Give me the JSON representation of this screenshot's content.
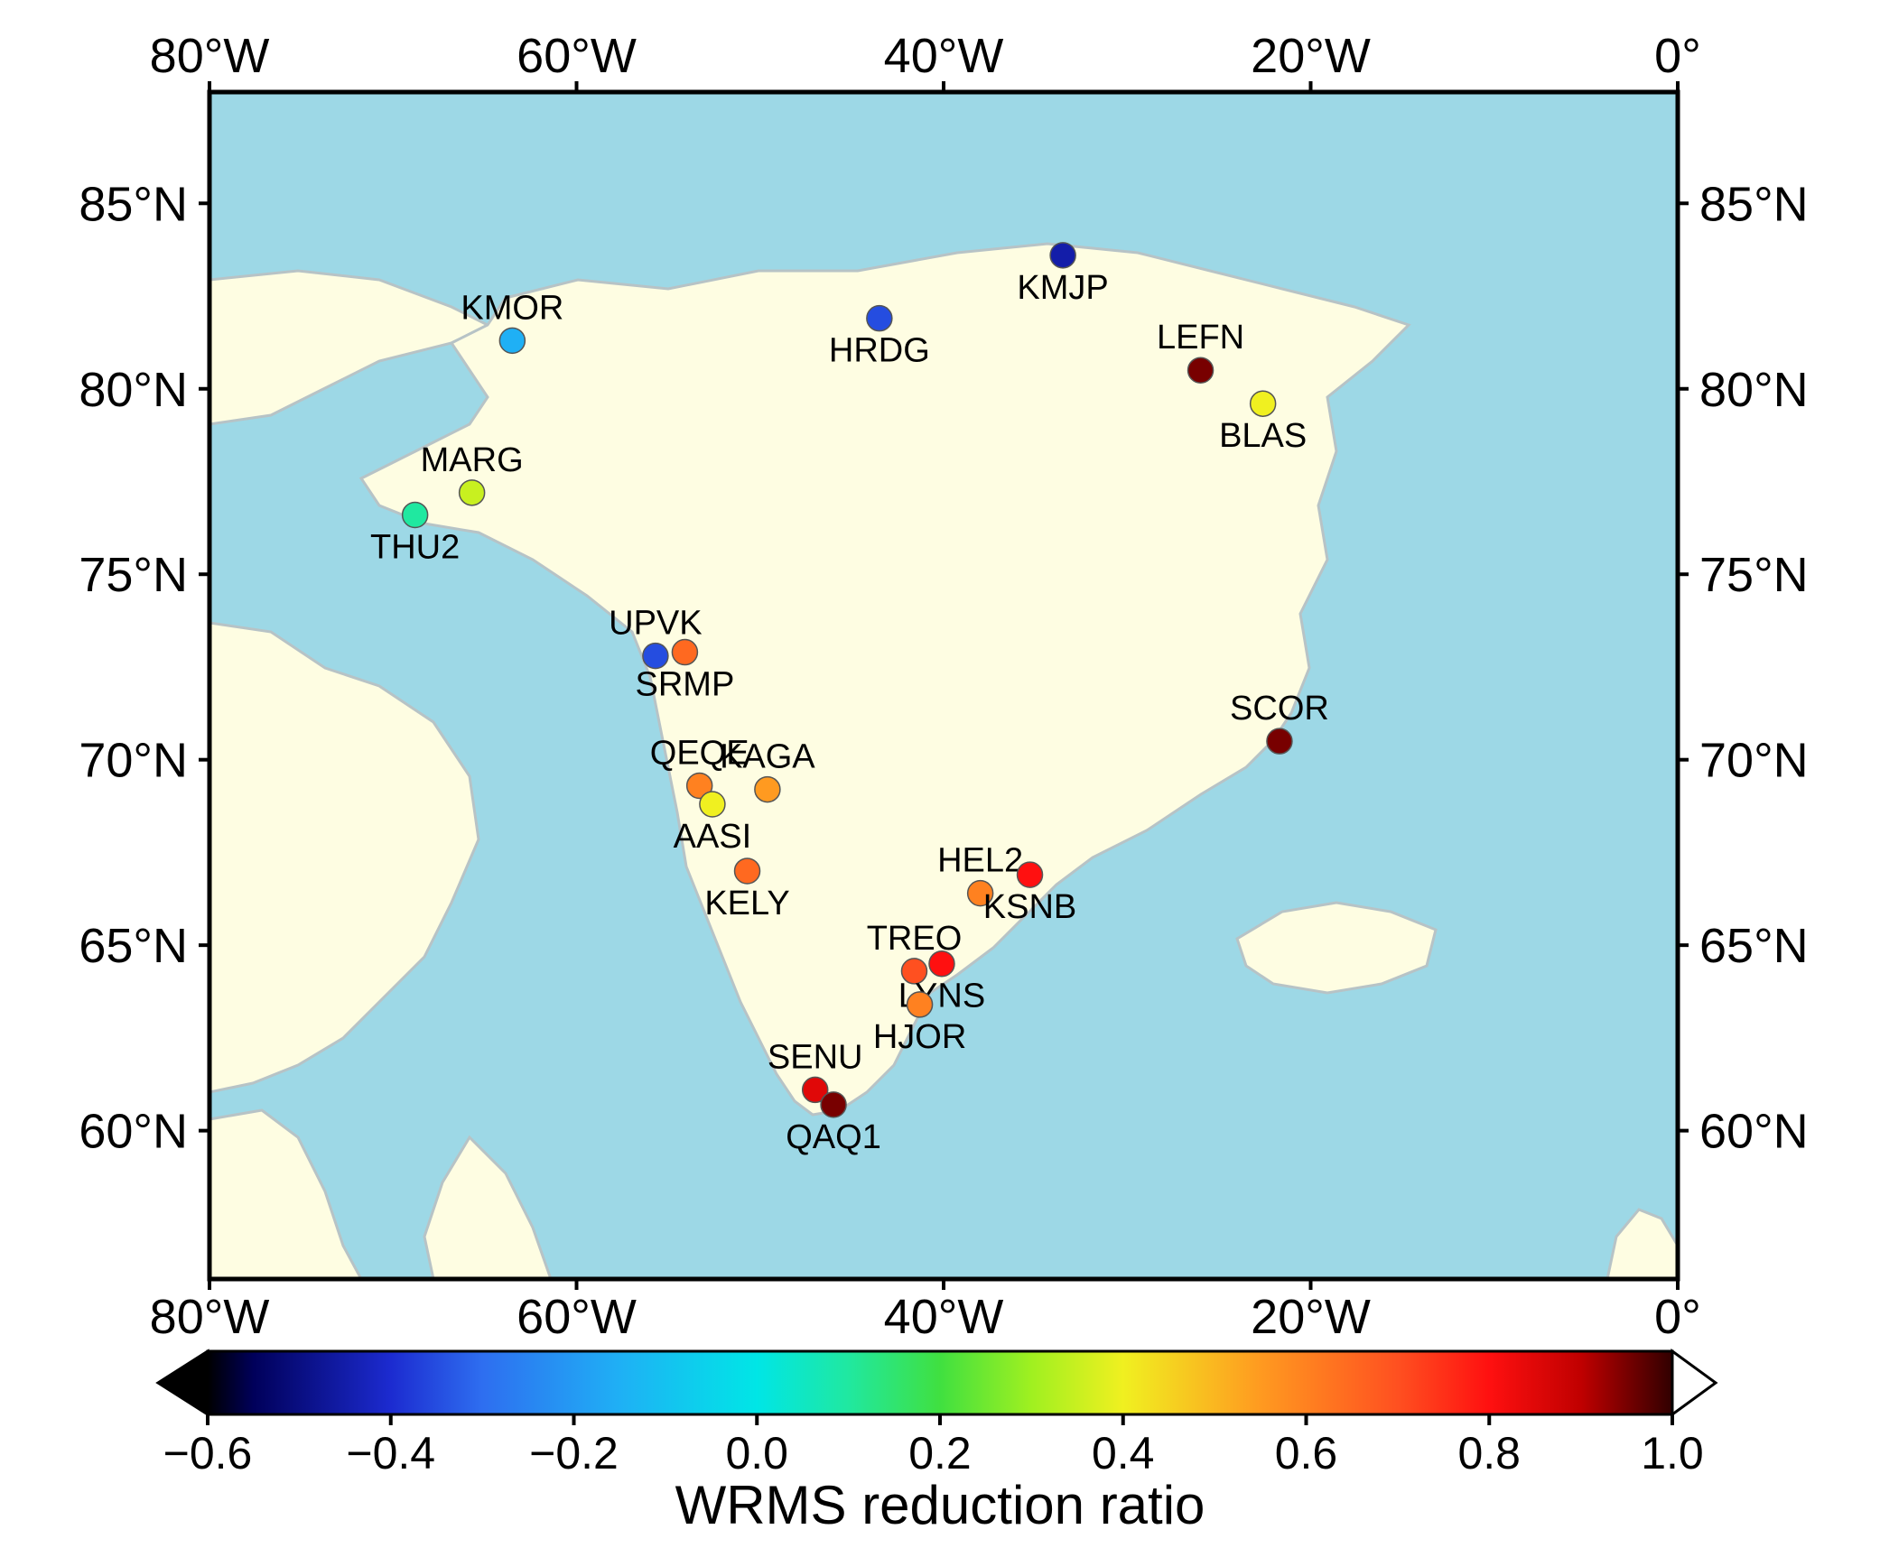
{
  "map": {
    "lon_range": [
      -80,
      0
    ],
    "lat_range": [
      56,
      88
    ],
    "colors": {
      "ocean": "#9dd8e6",
      "land": "#fefde2",
      "coast": "#b7c3c6"
    },
    "x_ticks": [
      {
        "lon": -80,
        "label": "80°W"
      },
      {
        "lon": -60,
        "label": "60°W"
      },
      {
        "lon": -40,
        "label": "40°W"
      },
      {
        "lon": -20,
        "label": "20°W"
      },
      {
        "lon": 0,
        "label": "0°"
      }
    ],
    "y_ticks": [
      {
        "lat": 85,
        "label": "85°N"
      },
      {
        "lat": 80,
        "label": "80°N"
      },
      {
        "lat": 75,
        "label": "75°N"
      },
      {
        "lat": 70,
        "label": "70°N"
      },
      {
        "lat": 65,
        "label": "65°N"
      },
      {
        "lat": 60,
        "label": "60°N"
      }
    ]
  },
  "stations": [
    {
      "name": "KMJP",
      "lon": -33.5,
      "lat": 83.6,
      "ratio": -0.45,
      "label_pos": "below"
    },
    {
      "name": "KMOR",
      "lon": -63.5,
      "lat": 81.3,
      "ratio": -0.15,
      "label_pos": "above"
    },
    {
      "name": "HRDG",
      "lon": -43.5,
      "lat": 81.9,
      "ratio": -0.35,
      "label_pos": "below"
    },
    {
      "name": "LEFN",
      "lon": -26.0,
      "lat": 80.5,
      "ratio": 0.95,
      "label_pos": "above"
    },
    {
      "name": "BLAS",
      "lon": -22.6,
      "lat": 79.6,
      "ratio": 0.4,
      "label_pos": "below"
    },
    {
      "name": "MARG",
      "lon": -65.7,
      "lat": 77.2,
      "ratio": 0.35,
      "label_pos": "above"
    },
    {
      "name": "THU2",
      "lon": -68.8,
      "lat": 76.6,
      "ratio": 0.1,
      "label_pos": "below"
    },
    {
      "name": "UPVK",
      "lon": -55.7,
      "lat": 72.8,
      "ratio": -0.35,
      "label_pos": "above"
    },
    {
      "name": "SRMP",
      "lon": -54.1,
      "lat": 72.9,
      "ratio": 0.65,
      "label_pos": "below"
    },
    {
      "name": "SCOR",
      "lon": -21.7,
      "lat": 70.5,
      "ratio": 0.95,
      "label_pos": "above"
    },
    {
      "name": "QEQE",
      "lon": -53.3,
      "lat": 69.3,
      "ratio": 0.6,
      "label_pos": "above"
    },
    {
      "name": "KAGA",
      "lon": -49.6,
      "lat": 69.2,
      "ratio": 0.55,
      "label_pos": "above"
    },
    {
      "name": "AASI",
      "lon": -52.6,
      "lat": 68.8,
      "ratio": 0.4,
      "label_pos": "below"
    },
    {
      "name": "KELY",
      "lon": -50.7,
      "lat": 67.0,
      "ratio": 0.65,
      "label_pos": "below"
    },
    {
      "name": "HEL2",
      "lon": -38.0,
      "lat": 66.4,
      "ratio": 0.6,
      "label_pos": "above"
    },
    {
      "name": "KSNB",
      "lon": -35.3,
      "lat": 66.9,
      "ratio": 0.8,
      "label_pos": "below"
    },
    {
      "name": "TREO",
      "lon": -41.6,
      "lat": 64.3,
      "ratio": 0.7,
      "label_pos": "above"
    },
    {
      "name": "LYNS",
      "lon": -40.1,
      "lat": 64.5,
      "ratio": 0.8,
      "label_pos": "below"
    },
    {
      "name": "HJOR",
      "lon": -41.3,
      "lat": 63.4,
      "ratio": 0.6,
      "label_pos": "below"
    },
    {
      "name": "SENU",
      "lon": -47.0,
      "lat": 61.1,
      "ratio": 0.85,
      "label_pos": "above"
    },
    {
      "name": "QAQ1",
      "lon": -46.0,
      "lat": 60.7,
      "ratio": 0.95,
      "label_pos": "below"
    }
  ],
  "colorbar": {
    "min": -0.6,
    "max": 1.0,
    "title": "WRMS reduction ratio",
    "ticks": [
      {
        "value": -0.6,
        "label": "−0.6"
      },
      {
        "value": -0.4,
        "label": "−0.4"
      },
      {
        "value": -0.2,
        "label": "−0.2"
      },
      {
        "value": 0.0,
        "label": "0.0"
      },
      {
        "value": 0.2,
        "label": "0.2"
      },
      {
        "value": 0.4,
        "label": "0.4"
      },
      {
        "value": 0.6,
        "label": "0.6"
      },
      {
        "value": 0.8,
        "label": "0.8"
      },
      {
        "value": 1.0,
        "label": "1.0"
      }
    ],
    "stops": [
      {
        "value": -0.6,
        "color": "#000000"
      },
      {
        "value": -0.55,
        "color": "#00005a"
      },
      {
        "value": -0.4,
        "color": "#1c2bd0"
      },
      {
        "value": -0.3,
        "color": "#2e6ef0"
      },
      {
        "value": -0.15,
        "color": "#1fb0f5"
      },
      {
        "value": 0.0,
        "color": "#00e6e6"
      },
      {
        "value": 0.1,
        "color": "#20e8a0"
      },
      {
        "value": 0.2,
        "color": "#40e040"
      },
      {
        "value": 0.3,
        "color": "#a0f020"
      },
      {
        "value": 0.4,
        "color": "#f0f020"
      },
      {
        "value": 0.55,
        "color": "#ff9a20"
      },
      {
        "value": 0.7,
        "color": "#ff5020"
      },
      {
        "value": 0.8,
        "color": "#ff1010"
      },
      {
        "value": 0.9,
        "color": "#c00000"
      },
      {
        "value": 1.0,
        "color": "#300000"
      }
    ],
    "extend_low_color": "#000000",
    "extend_high_color": "#ffffff"
  }
}
